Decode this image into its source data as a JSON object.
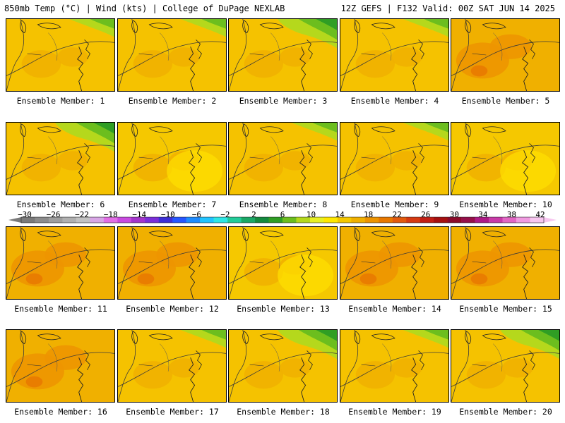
{
  "header": {
    "left": "850mb Temp (°C) | Wind (kts) | College of DuPage NEXLAB",
    "right": "12Z GEFS | F132 Valid: 00Z SAT JUN 14 2025"
  },
  "colorbar": {
    "labels": [
      "−30",
      "−26",
      "−22",
      "−18",
      "−14",
      "−10",
      "−6",
      "−2",
      "2",
      "6",
      "10",
      "14",
      "18",
      "22",
      "26",
      "30",
      "34",
      "38",
      "42"
    ],
    "colors": [
      "#7a7a7a",
      "#8c8c8c",
      "#9e9e9e",
      "#b0b0b0",
      "#c2c2c2",
      "#d8a6e6",
      "#e26ee6",
      "#c94ae0",
      "#a335cc",
      "#7a2ed9",
      "#3d2fd6",
      "#2656ff",
      "#1e8cff",
      "#22c4ff",
      "#2ee6e6",
      "#22cc99",
      "#1aa866",
      "#138a3e",
      "#2f9e24",
      "#6cbe1e",
      "#b5d81c",
      "#e8f024",
      "#ffe800",
      "#f5c800",
      "#f0b000",
      "#ed9400",
      "#e87800",
      "#e25a0e",
      "#d63a12",
      "#c21e14",
      "#a61010",
      "#8c0a2a",
      "#96104a",
      "#ae1a86",
      "#c93aa8",
      "#e266c4",
      "#f09ae0",
      "#f7c6ef"
    ]
  },
  "members": [
    {
      "label": "Ensemble Member: 1",
      "scheme": "green-top"
    },
    {
      "label": "Ensemble Member: 2",
      "scheme": "green-top"
    },
    {
      "label": "Ensemble Member: 3",
      "scheme": "green-strong"
    },
    {
      "label": "Ensemble Member: 4",
      "scheme": "green-top"
    },
    {
      "label": "Ensemble Member: 5",
      "scheme": "warm"
    },
    {
      "label": "Ensemble Member: 6",
      "scheme": "green-strong"
    },
    {
      "label": "Ensemble Member: 7",
      "scheme": "yellow"
    },
    {
      "label": "Ensemble Member: 8",
      "scheme": "green-top"
    },
    {
      "label": "Ensemble Member: 9",
      "scheme": "green-top"
    },
    {
      "label": "Ensemble Member: 10",
      "scheme": "yellow"
    },
    {
      "label": "Ensemble Member: 11",
      "scheme": "warm"
    },
    {
      "label": "Ensemble Member: 12",
      "scheme": "warm"
    },
    {
      "label": "Ensemble Member: 13",
      "scheme": "yellow"
    },
    {
      "label": "Ensemble Member: 14",
      "scheme": "warm"
    },
    {
      "label": "Ensemble Member: 15",
      "scheme": "warm"
    },
    {
      "label": "Ensemble Member: 16",
      "scheme": "warm"
    },
    {
      "label": "Ensemble Member: 17",
      "scheme": "green-top"
    },
    {
      "label": "Ensemble Member: 18",
      "scheme": "green-strong"
    },
    {
      "label": "Ensemble Member: 19",
      "scheme": "green-top"
    },
    {
      "label": "Ensemble Member: 20",
      "scheme": "green-strong"
    }
  ]
}
